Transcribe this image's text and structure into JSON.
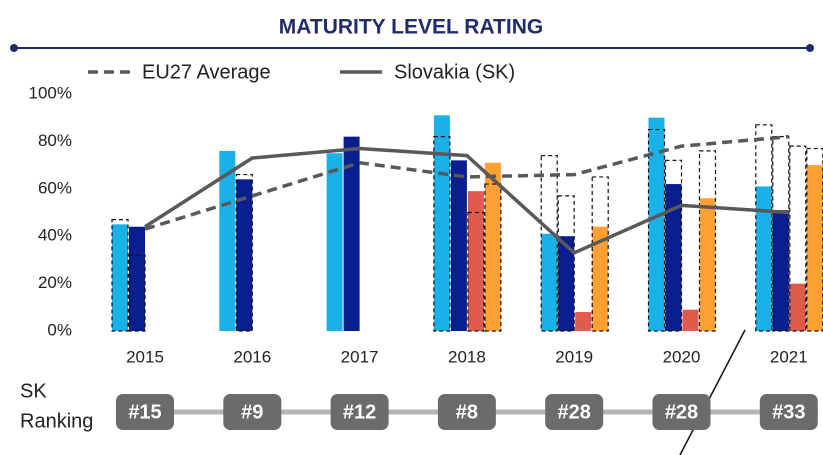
{
  "chart_data": {
    "type": "bar",
    "title": "MATURITY LEVEL RATING",
    "categories": [
      "2015",
      "2016",
      "2017",
      "2018",
      "2019",
      "2020",
      "2021"
    ],
    "ylim": [
      0,
      100
    ],
    "yticks": [
      {
        "value": 0,
        "label": "0%"
      },
      {
        "value": 20,
        "label": "20%"
      },
      {
        "value": 40,
        "label": "40%"
      },
      {
        "value": 60,
        "label": "60%"
      },
      {
        "value": 80,
        "label": "80%"
      },
      {
        "value": 100,
        "label": "100%"
      }
    ],
    "grid": false,
    "bars": [
      {
        "color": "#1ab0e8",
        "values": [
          45,
          76,
          75,
          91,
          41,
          90,
          61
        ],
        "outline_values": [
          47,
          null,
          null,
          82,
          74,
          85,
          87
        ]
      },
      {
        "color": "#0a1f8f",
        "values": [
          44,
          64,
          82,
          72,
          40,
          62,
          51
        ],
        "outline_values": [
          32,
          66,
          null,
          null,
          57,
          72,
          82
        ]
      },
      {
        "color": "#e05a4e",
        "values": [
          null,
          null,
          null,
          59,
          8,
          9,
          20
        ],
        "outline_values": [
          null,
          null,
          null,
          50,
          null,
          null,
          78
        ]
      },
      {
        "color": "#ffa033",
        "values": [
          null,
          null,
          null,
          71,
          44,
          56,
          70
        ],
        "outline_values": [
          null,
          null,
          null,
          62,
          65,
          76,
          77
        ]
      }
    ],
    "series": [
      {
        "name": "EU27 Average",
        "color": "#595959",
        "style": "dashed",
        "values": [
          43,
          57,
          71,
          65,
          66,
          78,
          82
        ]
      },
      {
        "name": "Slovakia (SK)",
        "color": "#595959",
        "style": "solid",
        "values": [
          44,
          73,
          77,
          74,
          33,
          53,
          50
        ]
      }
    ],
    "ranking": {
      "label_lines": [
        "SK",
        "Ranking"
      ],
      "values": [
        "#15",
        "#9",
        "#12",
        "#8",
        "#28",
        "#28",
        "#33"
      ]
    }
  }
}
